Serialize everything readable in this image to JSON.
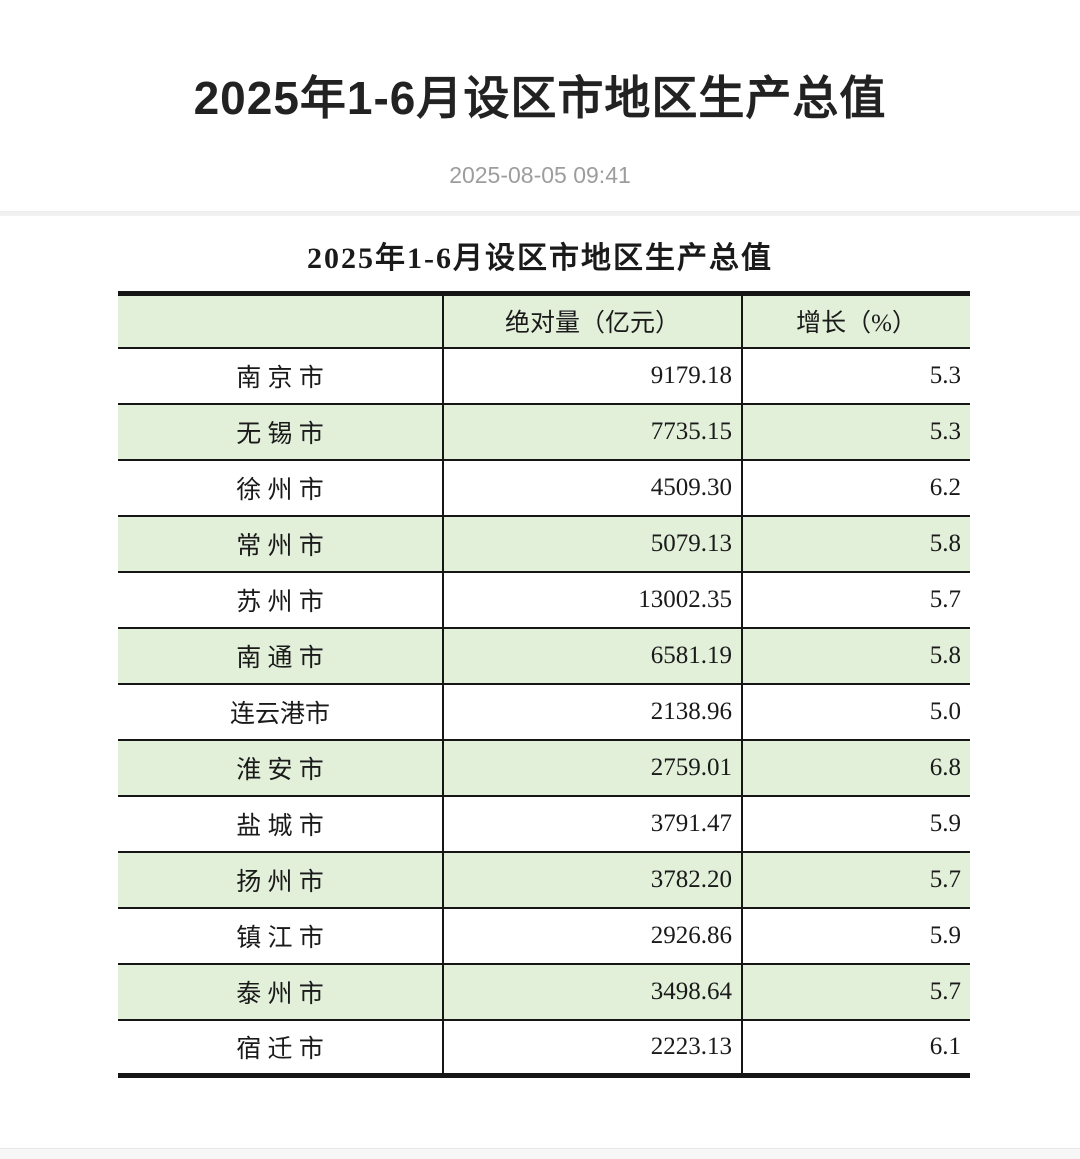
{
  "page": {
    "title": "2025年1-6月设区市地区生产总值",
    "publish_time": "2025-08-05 09:41"
  },
  "table": {
    "caption": "2025年1-6月设区市地区生产总值",
    "columns": [
      "",
      "绝对量（亿元）",
      "增长（%）"
    ],
    "rows": [
      {
        "city": "南 京 市",
        "value": "9179.18",
        "growth": "5.3"
      },
      {
        "city": "无 锡 市",
        "value": "7735.15",
        "growth": "5.3"
      },
      {
        "city": "徐 州 市",
        "value": "4509.30",
        "growth": "6.2"
      },
      {
        "city": "常 州 市",
        "value": "5079.13",
        "growth": "5.8"
      },
      {
        "city": "苏 州 市",
        "value": "13002.35",
        "growth": "5.7"
      },
      {
        "city": "南 通 市",
        "value": "6581.19",
        "growth": "5.8"
      },
      {
        "city": "连云港市",
        "value": "2138.96",
        "growth": "5.0"
      },
      {
        "city": "淮 安 市",
        "value": "2759.01",
        "growth": "6.8"
      },
      {
        "city": "盐 城 市",
        "value": "3791.47",
        "growth": "5.9"
      },
      {
        "city": "扬 州 市",
        "value": "3782.20",
        "growth": "5.7"
      },
      {
        "city": "镇 江 市",
        "value": "2926.86",
        "growth": "5.9"
      },
      {
        "city": "泰 州 市",
        "value": "3498.64",
        "growth": "5.7"
      },
      {
        "city": "宿 迁 市",
        "value": "2223.13",
        "growth": "6.1"
      }
    ]
  },
  "colors": {
    "row_green": "#e2efd9",
    "table_border": "#161616",
    "date_text": "#9d9d9d",
    "divider": "#f1f1f1",
    "footer_band": "#f7f7f7"
  }
}
